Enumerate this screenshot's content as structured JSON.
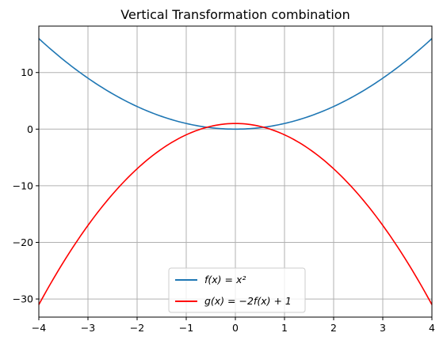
{
  "chart_data": {
    "type": "line",
    "title": "Vertical Transformation combination",
    "xlabel": "",
    "ylabel": "",
    "xlim": [
      -4,
      4
    ],
    "ylim": [
      -33.2,
      18.2
    ],
    "grid": true,
    "legend_position": "lower center",
    "x_ticks": [
      -4,
      -3,
      -2,
      -1,
      0,
      1,
      2,
      3,
      4
    ],
    "x_tick_labels": [
      "−4",
      "−3",
      "−2",
      "−1",
      "0",
      "1",
      "2",
      "3",
      "4"
    ],
    "y_ticks": [
      10,
      0,
      -10,
      -20,
      -30
    ],
    "y_tick_labels": [
      "10",
      "0",
      "−10",
      "−20",
      "−30"
    ],
    "x": [
      -4,
      -3.5,
      -3,
      -2.5,
      -2,
      -1.5,
      -1,
      -0.5,
      0,
      0.5,
      1,
      1.5,
      2,
      2.5,
      3,
      3.5,
      4
    ],
    "series": [
      {
        "name": "f(x) = x²",
        "color": "#1f77b4",
        "values": [
          16,
          12.25,
          9,
          6.25,
          4,
          2.25,
          1,
          0.25,
          0,
          0.25,
          1,
          2.25,
          4,
          6.25,
          9,
          12.25,
          16
        ]
      },
      {
        "name": "g(x) = −2f(x) + 1",
        "color": "#ff0000",
        "values": [
          -31,
          -23.5,
          -17,
          -11.5,
          -7,
          -3.5,
          -1,
          0.5,
          1,
          0.5,
          -1,
          -3.5,
          -7,
          -11.5,
          -17,
          -23.5,
          -31
        ]
      }
    ]
  }
}
